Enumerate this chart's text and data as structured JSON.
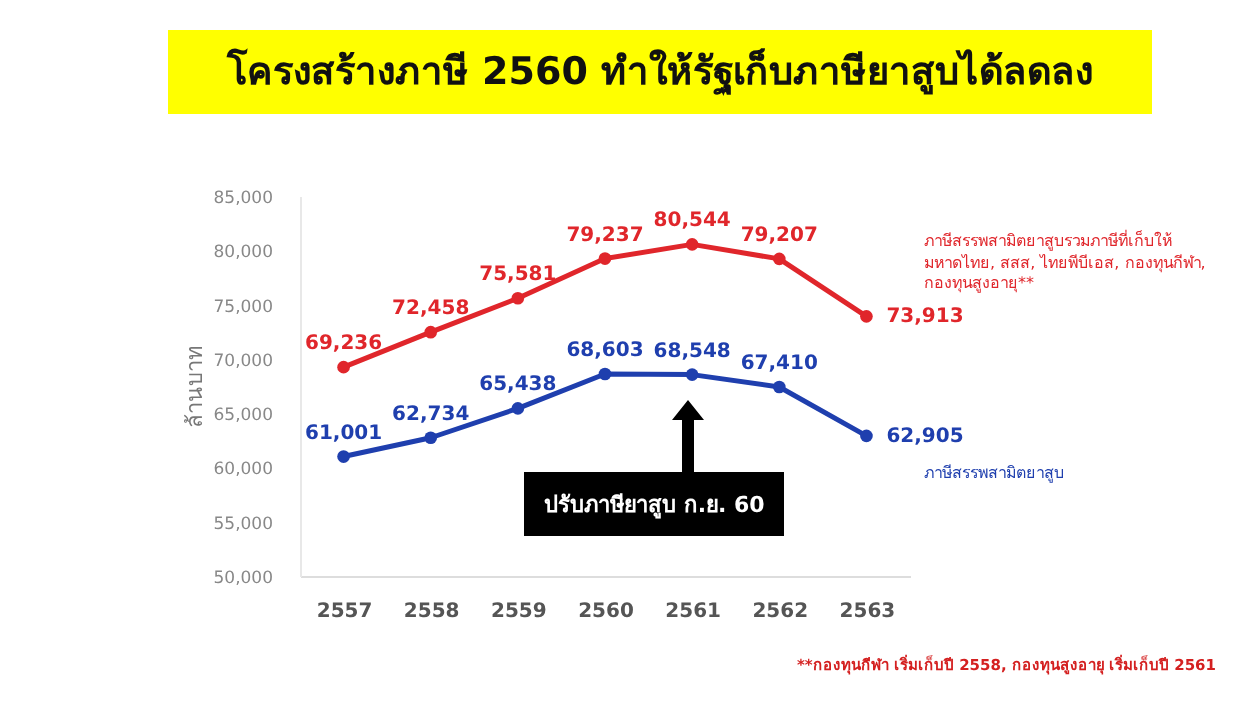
{
  "chart_data": {
    "type": "line",
    "title": "โครงสร้างภาษี 2560 ทำให้รัฐเก็บภาษียาสูบได้ลดลง",
    "ylabel": "ล้านบาท",
    "categories": [
      "2557",
      "2558",
      "2559",
      "2560",
      "2561",
      "2562",
      "2563"
    ],
    "series": [
      {
        "name": "ภาษีสรรพสามิตยาสูบรวมภาษีที่เก็บให้ มหาดไทย, สสส, ไทยพีบีเอส, กองทุนกีฬา, กองทุนสูงอายุ**",
        "color": "#e0262b",
        "values": [
          69236,
          72458,
          75581,
          79237,
          80544,
          79207,
          73913
        ],
        "value_labels": [
          "69,236",
          "72,458",
          "75,581",
          "79,237",
          "80,544",
          "79,207",
          "73,913"
        ]
      },
      {
        "name": "ภาษีสรรพสามิตยาสูบ",
        "color": "#1f3fae",
        "values": [
          61001,
          62734,
          65438,
          68603,
          68548,
          67410,
          62905
        ],
        "value_labels": [
          "61,001",
          "62,734",
          "65,438",
          "68,603",
          "68,548",
          "67,410",
          "62,905"
        ]
      }
    ],
    "ylim": [
      50000,
      85000
    ],
    "yticks": [
      {
        "value": 50000,
        "label": "50,000"
      },
      {
        "value": 55000,
        "label": "55,000"
      },
      {
        "value": 60000,
        "label": "60,000"
      },
      {
        "value": 65000,
        "label": "65,000"
      },
      {
        "value": 70000,
        "label": "70,000"
      },
      {
        "value": 75000,
        "label": "75,000"
      },
      {
        "value": 80000,
        "label": "80,000"
      },
      {
        "value": 85000,
        "label": "85,000"
      }
    ],
    "grid": false,
    "marker": "circle",
    "line_style": "solid",
    "annotations": [
      "ปรับภาษียาสูบ ก.ย. 60",
      "**กองทุนกีฬา เริ่มเก็บปี 2558, กองทุนสูงอายุ เริ่มเก็บปี 2561"
    ]
  }
}
